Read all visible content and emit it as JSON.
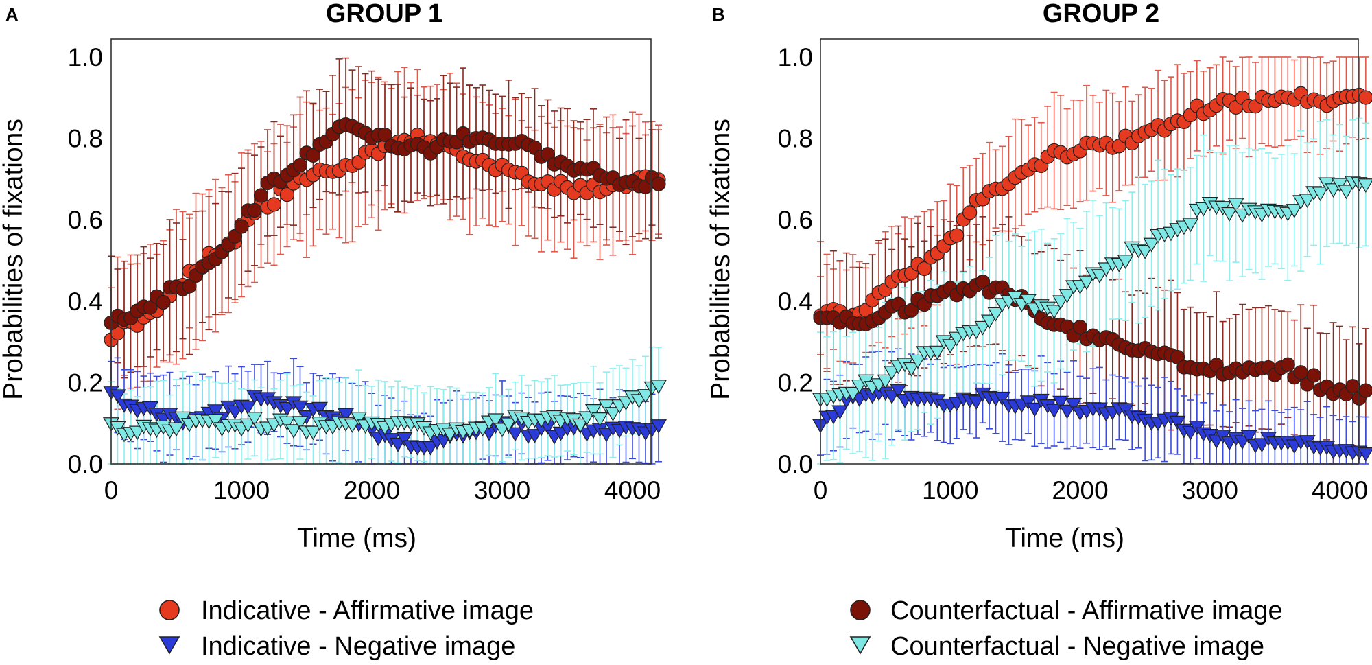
{
  "figure": {
    "panels": [
      {
        "letter": "A",
        "title": "GROUP 1"
      },
      {
        "letter": "B",
        "title": "GROUP 2"
      }
    ],
    "legend_left": [
      {
        "label": "Indicative - Affirmative image",
        "marker": "circle",
        "color": "#e53a1f"
      },
      {
        "label": "Indicative - Negative image",
        "marker": "triangle-down",
        "color": "#2b3bd8"
      }
    ],
    "legend_right": [
      {
        "label": "Counterfactual - Affirmative image",
        "marker": "circle",
        "color": "#7a1208"
      },
      {
        "label": "Counterfactual - Negative image",
        "marker": "triangle-down",
        "color": "#7fe7e4"
      }
    ]
  },
  "chart_data": [
    {
      "type": "line",
      "panel": "A",
      "title": "GROUP 1",
      "xlabel": "Time (ms)",
      "ylabel": "Probabilities of fixations",
      "xlim": [
        0,
        4200
      ],
      "ylim": [
        0,
        1.0
      ],
      "xticks": [
        0,
        1000,
        2000,
        3000,
        4000
      ],
      "yticks": [
        0.0,
        0.2,
        0.4,
        0.6,
        0.8,
        1.0
      ],
      "yticklabels": [
        "0.0",
        "0.2",
        "0.4",
        "0.6",
        "0.8",
        "1.0"
      ],
      "grid": false,
      "series": [
        {
          "name": "Indicative - Affirmative image",
          "marker": "circle",
          "color": "#e53a1f",
          "errColor": "#e0574a",
          "knots": [
            [
              0,
              0.32
            ],
            [
              300,
              0.37
            ],
            [
              600,
              0.47
            ],
            [
              900,
              0.54
            ],
            [
              1200,
              0.64
            ],
            [
              1500,
              0.7
            ],
            [
              1800,
              0.73
            ],
            [
              2100,
              0.78
            ],
            [
              2400,
              0.8
            ],
            [
              2700,
              0.77
            ],
            [
              3000,
              0.72
            ],
            [
              3300,
              0.69
            ],
            [
              3600,
              0.67
            ],
            [
              3900,
              0.68
            ],
            [
              4200,
              0.7
            ]
          ],
          "err": 0.16
        },
        {
          "name": "Counterfactual - Affirmative image",
          "marker": "circle",
          "color": "#7a1208",
          "errColor": "#8a2a20",
          "knots": [
            [
              0,
              0.35
            ],
            [
              300,
              0.39
            ],
            [
              600,
              0.45
            ],
            [
              900,
              0.55
            ],
            [
              1200,
              0.68
            ],
            [
              1500,
              0.76
            ],
            [
              1800,
              0.83
            ],
            [
              2100,
              0.8
            ],
            [
              2400,
              0.77
            ],
            [
              2700,
              0.8
            ],
            [
              3000,
              0.8
            ],
            [
              3300,
              0.76
            ],
            [
              3600,
              0.73
            ],
            [
              3900,
              0.7
            ],
            [
              4200,
              0.69
            ]
          ],
          "err": 0.14
        },
        {
          "name": "Indicative - Negative image",
          "marker": "triangle-down",
          "color": "#2b3bd8",
          "errColor": "#3a4be0",
          "knots": [
            [
              0,
              0.17
            ],
            [
              300,
              0.13
            ],
            [
              600,
              0.11
            ],
            [
              900,
              0.13
            ],
            [
              1200,
              0.17
            ],
            [
              1500,
              0.13
            ],
            [
              1800,
              0.11
            ],
            [
              2100,
              0.06
            ],
            [
              2400,
              0.05
            ],
            [
              2700,
              0.08
            ],
            [
              3000,
              0.09
            ],
            [
              3300,
              0.08
            ],
            [
              3600,
              0.08
            ],
            [
              3900,
              0.09
            ],
            [
              4200,
              0.09
            ]
          ],
          "err": 0.09
        },
        {
          "name": "Counterfactual - Negative image",
          "marker": "triangle-down",
          "color": "#7fe7e4",
          "errColor": "#8cefee",
          "knots": [
            [
              0,
              0.09
            ],
            [
              300,
              0.08
            ],
            [
              600,
              0.11
            ],
            [
              900,
              0.1
            ],
            [
              1200,
              0.1
            ],
            [
              1500,
              0.09
            ],
            [
              1800,
              0.1
            ],
            [
              2100,
              0.1
            ],
            [
              2400,
              0.09
            ],
            [
              2700,
              0.08
            ],
            [
              3000,
              0.1
            ],
            [
              3300,
              0.11
            ],
            [
              3600,
              0.11
            ],
            [
              3900,
              0.14
            ],
            [
              4200,
              0.18
            ]
          ],
          "err": 0.1
        }
      ]
    },
    {
      "type": "line",
      "panel": "B",
      "title": "GROUP 2",
      "xlabel": "Time (ms)",
      "ylabel": "Probabilities of fixations",
      "xlim": [
        0,
        4200
      ],
      "ylim": [
        0,
        1.0
      ],
      "xticks": [
        0,
        1000,
        2000,
        3000,
        4000
      ],
      "yticks": [
        0.0,
        0.2,
        0.4,
        0.6,
        0.8,
        1.0
      ],
      "yticklabels": [
        "0.0",
        "0.2",
        "0.4",
        "0.6",
        "0.8",
        "1.0"
      ],
      "grid": false,
      "series": [
        {
          "name": "Indicative - Affirmative image",
          "marker": "circle",
          "color": "#e53a1f",
          "errColor": "#e0574a",
          "knots": [
            [
              0,
              0.37
            ],
            [
              300,
              0.37
            ],
            [
              600,
              0.45
            ],
            [
              900,
              0.51
            ],
            [
              1200,
              0.64
            ],
            [
              1500,
              0.69
            ],
            [
              1800,
              0.76
            ],
            [
              2100,
              0.78
            ],
            [
              2400,
              0.8
            ],
            [
              2700,
              0.84
            ],
            [
              3000,
              0.88
            ],
            [
              3300,
              0.89
            ],
            [
              3600,
              0.9
            ],
            [
              3900,
              0.89
            ],
            [
              4200,
              0.9
            ]
          ],
          "err": 0.12
        },
        {
          "name": "Counterfactual - Affirmative image",
          "marker": "circle",
          "color": "#7a1208",
          "errColor": "#8a2a20",
          "knots": [
            [
              0,
              0.37
            ],
            [
              300,
              0.34
            ],
            [
              600,
              0.38
            ],
            [
              900,
              0.41
            ],
            [
              1200,
              0.44
            ],
            [
              1500,
              0.41
            ],
            [
              1800,
              0.35
            ],
            [
              2100,
              0.31
            ],
            [
              2400,
              0.28
            ],
            [
              2700,
              0.26
            ],
            [
              3000,
              0.23
            ],
            [
              3300,
              0.24
            ],
            [
              3600,
              0.23
            ],
            [
              3900,
              0.19
            ],
            [
              4200,
              0.17
            ]
          ],
          "err": 0.16
        },
        {
          "name": "Indicative - Negative image",
          "marker": "triangle-down",
          "color": "#2b3bd8",
          "errColor": "#3a4be0",
          "knots": [
            [
              0,
              0.1
            ],
            [
              300,
              0.17
            ],
            [
              600,
              0.17
            ],
            [
              900,
              0.16
            ],
            [
              1200,
              0.16
            ],
            [
              1500,
              0.15
            ],
            [
              1800,
              0.14
            ],
            [
              2100,
              0.13
            ],
            [
              2400,
              0.12
            ],
            [
              2700,
              0.1
            ],
            [
              3000,
              0.07
            ],
            [
              3300,
              0.06
            ],
            [
              3600,
              0.05
            ],
            [
              3900,
              0.04
            ],
            [
              4200,
              0.04
            ]
          ],
          "err": 0.09
        },
        {
          "name": "Counterfactual - Negative image",
          "marker": "triangle-down",
          "color": "#7fe7e4",
          "errColor": "#8cefee",
          "knots": [
            [
              0,
              0.15
            ],
            [
              300,
              0.19
            ],
            [
              600,
              0.23
            ],
            [
              900,
              0.28
            ],
            [
              1200,
              0.34
            ],
            [
              1500,
              0.4
            ],
            [
              1800,
              0.39
            ],
            [
              2100,
              0.47
            ],
            [
              2400,
              0.52
            ],
            [
              2700,
              0.57
            ],
            [
              3000,
              0.64
            ],
            [
              3300,
              0.62
            ],
            [
              3600,
              0.62
            ],
            [
              3900,
              0.68
            ],
            [
              4200,
              0.68
            ]
          ],
          "err": 0.16
        }
      ]
    }
  ]
}
